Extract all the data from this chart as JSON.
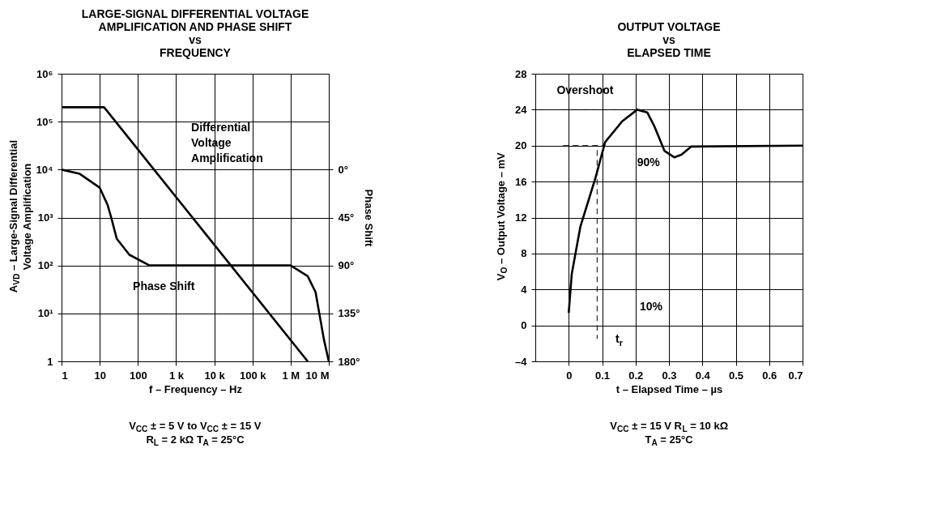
{
  "chart_data": [
    {
      "type": "line",
      "title": "LARGE-SIGNAL DIFFERENTIAL VOLTAGE\nAMPLIFICATION AND PHASE SHIFT\nvs\nFREQUENCY",
      "xlabel": "f – Frequency – Hz",
      "ylabel": "A$_{VD}$ – Large-Signal Differential\nVoltage Amplification",
      "y2label": "Phase Shift",
      "log": "xy",
      "grid": true,
      "xlim": [
        1,
        10000000
      ],
      "xticks": [
        1,
        10,
        100,
        {
          "value": 1000,
          "label": "1 k"
        },
        {
          "value": 10000,
          "label": "10 k"
        },
        {
          "value": 100000,
          "label": "100 k"
        },
        {
          "value": 1000000,
          "label": "1 M"
        },
        {
          "value": 10000000,
          "label": "10 M"
        }
      ],
      "ylim": [
        1,
        1000000
      ],
      "yticks": [
        1,
        {
          "value": 10,
          "label": "10¹"
        },
        {
          "value": 100,
          "label": "10²"
        },
        {
          "value": 1000,
          "label": "10³"
        },
        {
          "value": 10000,
          "label": "10⁴"
        },
        {
          "value": 100000,
          "label": "10⁵"
        },
        {
          "value": 1000000,
          "label": "10⁶"
        }
      ],
      "y2lim": [
        180,
        -90
      ],
      "y2ticks": [
        {
          "value": 0,
          "label": "0°"
        },
        {
          "value": 45,
          "label": "45°"
        },
        {
          "value": 90,
          "label": "90°"
        },
        {
          "value": 135,
          "label": "135°"
        },
        {
          "value": 180,
          "label": "180°"
        }
      ],
      "series": [
        {
          "name": "Differential\nVoltage\nAmplification",
          "color": "#000000",
          "line_style": "solid",
          "x": [
            1,
            13,
            2800000
          ],
          "values": [
            200000,
            200000,
            1
          ]
        },
        {
          "name": "Phase Shift",
          "color": "#000000",
          "line_style": "solid",
          "axis": "y2",
          "x": [
            1,
            3,
            10,
            16,
            20,
            28,
            60,
            200,
            1000000,
            2800000,
            4500000,
            7400000,
            10000000
          ],
          "values": [
            0,
            4,
            17,
            33,
            45,
            65,
            80,
            90,
            90,
            100,
            115,
            159,
            180
          ]
        }
      ],
      "annotations": [
        "V$_{CC}$ ± = 5 V to V$_{CC}$ ± = 15 V",
        "R$_{L}$ = 2 kΩ T$_{A}$ = 25°C"
      ]
    },
    {
      "type": "line",
      "title": "OUTPUT VOLTAGE\nvs\nELAPSED TIME",
      "xlabel": "t – Elapsed Time – µs",
      "ylabel": "V$_{O}$ – Output Voltage – mV",
      "grid": true,
      "xlim": [
        -0.1,
        0.7
      ],
      "xticks": [
        0,
        0.1,
        0.2,
        0.3,
        0.4,
        0.5,
        0.6,
        0.7
      ],
      "ylim": [
        -4,
        28
      ],
      "yticks": [
        {
          "value": -4,
          "label": "–4"
        },
        0,
        4,
        8,
        12,
        16,
        20,
        24,
        28
      ],
      "series": [
        {
          "color": "#000000",
          "line_style": "solid",
          "x": [
            0,
            0.009,
            0.035,
            0.08,
            0.109,
            0.16,
            0.205,
            0.235,
            0.257,
            0.287,
            0.316,
            0.338,
            0.367,
            0.7
          ],
          "values": [
            1.4,
            5.7,
            11,
            16.4,
            20.4,
            22.7,
            24,
            23.7,
            22.1,
            19.4,
            18.7,
            19,
            19.9,
            20
          ]
        },
        {
          "color": "#000000",
          "line_style": "dashed",
          "x": [
            -0.017,
            0.205
          ],
          "values": [
            24,
            24
          ]
        },
        {
          "color": "#000000",
          "line_style": "dashed",
          "x": [
            -0.017,
            0.109
          ],
          "values": [
            20,
            20
          ]
        },
        {
          "color": "#000000",
          "line_style": "dashed",
          "x": [
            0.085,
            0.085
          ],
          "values": [
            19.5,
            -1.5
          ]
        }
      ],
      "annotations": [
        "Overshoot",
        "90%",
        "10%",
        "t$_{r}$",
        "V$_{CC}$ ± = 15 V R$_{L}$ = 10 kΩ",
        "T$_{A}$ = 25°C"
      ]
    }
  ]
}
